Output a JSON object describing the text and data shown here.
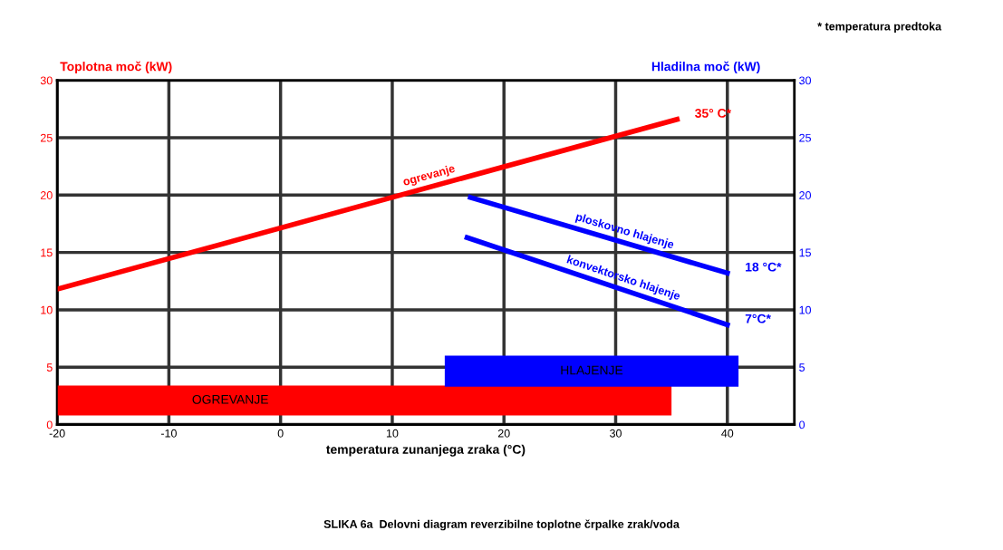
{
  "chart_data": {
    "type": "line",
    "ylabel": "Toplotna moč (kW)",
    "y2label": "Hladilna moč (kW)",
    "xlabel": "temperatura zunanjega zraka (°C)",
    "xlim": [
      -20,
      46
    ],
    "xticks": [
      -20,
      -10,
      0,
      10,
      20,
      30,
      40
    ],
    "ylim": [
      0,
      30
    ],
    "yticks": [
      0,
      5,
      10,
      15,
      20,
      25,
      30
    ],
    "y2lim": [
      0,
      30
    ],
    "y2ticks": [
      0,
      5,
      10,
      15,
      20,
      25,
      30
    ],
    "grid": true,
    "marker": "none",
    "line_style": "solid",
    "series": [
      {
        "name": "ogrevanje",
        "color": "#ff0000",
        "x": [
          -20,
          35.5
        ],
        "values": [
          11.8,
          26.6
        ]
      },
      {
        "name": "ploskovno hlajenje",
        "color": "#0000ff",
        "x": [
          17,
          40
        ],
        "values": [
          19.8,
          13.2
        ]
      },
      {
        "name": "konvektorsko hlajenje",
        "color": "#0000ff",
        "x": [
          16.7,
          40
        ],
        "values": [
          16.3,
          8.7
        ]
      }
    ],
    "bands": [
      {
        "axis": "x",
        "from": -20,
        "to": 35,
        "label": "OGREVANJE",
        "color": "#ff0000"
      },
      {
        "axis": "x",
        "from": 14.7,
        "to": 41,
        "label": "HLAJENJE",
        "color": "#0000ff"
      }
    ],
    "annotations": [
      "35° C*",
      "18 °C*",
      "7°C*",
      "* temperatura predtoka",
      "SLIKA 6a  Delovni diagram reverzibilne toplotne črpalke zrak/voda"
    ]
  }
}
